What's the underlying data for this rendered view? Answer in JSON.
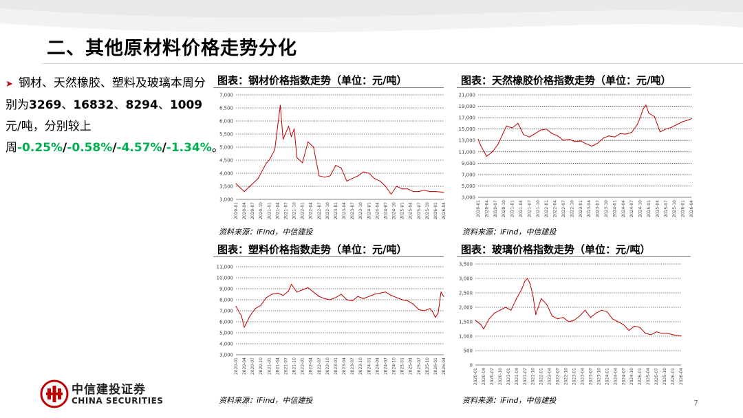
{
  "slide": {
    "title": "二、其他原材料价格走势分化",
    "page_number": "7"
  },
  "summary": {
    "t1": "钢材、天然橡胶、塑料及玻璃本周分别为",
    "n1": "3269",
    "s1": "、",
    "n2": "16832",
    "s2": "、",
    "n3": "8294",
    "s3": "、",
    "n4": "1009",
    "t2": "元/吨，分别较上周",
    "c1": "-0.25%",
    "sep1": "/",
    "c2": "-0.58%",
    "sep2": "/",
    "c3": "-4.57%",
    "sep3": "/",
    "c4": "-1.34%",
    "end": "。"
  },
  "source_text": "资料来源：iFind，中信建投",
  "logo": {
    "cn": "中信建投证券",
    "en": "CHINA SECURITIES"
  },
  "colors": {
    "series": "#c00000",
    "grid": "#000000",
    "green": "#00b050"
  },
  "chart_data": [
    {
      "type": "line",
      "title": "图表：钢材价格指数走势（单位：元/吨）",
      "ylim": [
        3000,
        7000
      ],
      "yticks": [
        "3,000",
        "3,500",
        "4,000",
        "4,500",
        "5,000",
        "5,500",
        "6,000",
        "6,500",
        "7,000"
      ],
      "xticks": [
        "2020-01",
        "2020-04",
        "2020-07",
        "2020-10",
        "2021-01",
        "2021-04",
        "2021-07",
        "2021-10",
        "2022-01",
        "2022-04",
        "2022-07",
        "2022-10",
        "2023-01",
        "2023-04",
        "2023-07",
        "2023-10",
        "2024-01",
        "2024-04",
        "2024-07",
        "2024-10",
        "2025-01",
        "2025-04",
        "2025-07",
        "2025-10",
        "2026-01",
        "2026-04"
      ],
      "grid": true,
      "series": [
        {
          "x": [
            "2020-01",
            "2020-04",
            "2020-06",
            "2020-09",
            "2020-12",
            "2021-01",
            "2021-03",
            "2021-05",
            "2021-06",
            "2021-08",
            "2021-09",
            "2021-10",
            "2021-11",
            "2022-01",
            "2022-03",
            "2022-05",
            "2022-07",
            "2022-09",
            "2022-11",
            "2023-01",
            "2023-03",
            "2023-05",
            "2023-07",
            "2023-09",
            "2023-11",
            "2024-01",
            "2024-03",
            "2024-05",
            "2024-07",
            "2024-09",
            "2024-11",
            "2025-01",
            "2025-03",
            "2025-05",
            "2025-07",
            "2025-09",
            "2025-11",
            "2026-01",
            "2026-03",
            "2026-04"
          ],
          "values": [
            3600,
            3300,
            3500,
            3800,
            4400,
            4500,
            4900,
            6600,
            5300,
            5800,
            5400,
            5700,
            4600,
            4400,
            5200,
            5000,
            3900,
            3850,
            3900,
            4300,
            4200,
            3700,
            3800,
            3900,
            4050,
            4000,
            3800,
            3700,
            3500,
            3200,
            3500,
            3400,
            3400,
            3300,
            3300,
            3350,
            3300,
            3300,
            3280,
            3269
          ]
        }
      ]
    },
    {
      "type": "line",
      "title": "图表：天然橡胶价格指数走势（单位：元/吨）",
      "ylim": [
        3000,
        21000
      ],
      "yticks": [
        "3,000",
        "5,000",
        "7,000",
        "9,000",
        "11,000",
        "13,000",
        "15,000",
        "17,000",
        "19,000",
        "21,000"
      ],
      "xticks": [
        "2020-01",
        "2020-04",
        "2020-07",
        "2020-10",
        "2021-01",
        "2021-04",
        "2021-07",
        "2021-10",
        "2022-01",
        "2022-04",
        "2022-07",
        "2022-10",
        "2023-01",
        "2023-04",
        "2023-07",
        "2023-10",
        "2024-01",
        "2024-04",
        "2024-07",
        "2024-10",
        "2025-01",
        "2025-04",
        "2025-07",
        "2025-10",
        "2026-01",
        "2026-04"
      ],
      "grid": true,
      "series": [
        {
          "x": [
            "2020-01",
            "2020-02",
            "2020-04",
            "2020-06",
            "2020-08",
            "2020-10",
            "2020-11",
            "2021-01",
            "2021-03",
            "2021-05",
            "2021-07",
            "2021-09",
            "2021-11",
            "2022-01",
            "2022-03",
            "2022-05",
            "2022-07",
            "2022-09",
            "2022-11",
            "2023-01",
            "2023-03",
            "2023-05",
            "2023-07",
            "2023-09",
            "2023-11",
            "2024-01",
            "2024-03",
            "2024-05",
            "2024-07",
            "2024-09",
            "2024-10",
            "2024-11",
            "2024-12",
            "2025-01",
            "2025-03",
            "2025-05",
            "2025-07",
            "2025-09",
            "2025-11",
            "2026-01",
            "2026-03",
            "2026-04"
          ],
          "values": [
            13200,
            12000,
            10200,
            11000,
            12300,
            14500,
            15500,
            15200,
            16000,
            14000,
            13600,
            14200,
            14800,
            15000,
            14200,
            13800,
            13000,
            13200,
            12800,
            12900,
            12400,
            12000,
            12500,
            13400,
            13800,
            13600,
            14200,
            14100,
            14400,
            15800,
            17000,
            18500,
            19200,
            17800,
            17200,
            14500,
            15000,
            15300,
            15800,
            16300,
            16600,
            16832
          ]
        }
      ]
    },
    {
      "type": "line",
      "title": "图表：塑料价格指数走势（单位：元/吨）",
      "ylim": [
        3000,
        11000
      ],
      "yticks": [
        "3,000",
        "4,000",
        "5,000",
        "6,000",
        "7,000",
        "8,000",
        "9,000",
        "10,000",
        "11,000"
      ],
      "xticks": [
        "2020-01",
        "2020-04",
        "2020-07",
        "2020-10",
        "2021-01",
        "2021-04",
        "2021-07",
        "2021-10",
        "2022-01",
        "2022-04",
        "2022-07",
        "2022-10",
        "2023-01",
        "2023-04",
        "2023-07",
        "2023-10",
        "2024-01",
        "2024-04",
        "2024-07",
        "2024-10",
        "2025-01",
        "2025-04",
        "2025-07",
        "2025-10",
        "2026-01",
        "2026-04"
      ],
      "grid": true,
      "series": [
        {
          "x": [
            "2020-01",
            "2020-03",
            "2020-04",
            "2020-06",
            "2020-08",
            "2020-10",
            "2020-12",
            "2021-02",
            "2021-04",
            "2021-06",
            "2021-08",
            "2021-09",
            "2021-11",
            "2022-01",
            "2022-03",
            "2022-05",
            "2022-07",
            "2022-09",
            "2022-11",
            "2023-01",
            "2023-03",
            "2023-05",
            "2023-07",
            "2023-09",
            "2023-11",
            "2024-01",
            "2024-03",
            "2024-05",
            "2024-07",
            "2024-09",
            "2024-11",
            "2025-01",
            "2025-03",
            "2025-05",
            "2025-07",
            "2025-09",
            "2025-11",
            "2025-12",
            "2026-01",
            "2026-02",
            "2026-03",
            "2026-04"
          ],
          "values": [
            7400,
            6500,
            5500,
            6500,
            7200,
            7500,
            8200,
            8500,
            8600,
            8400,
            8800,
            9400,
            8700,
            8900,
            9100,
            8700,
            8300,
            8100,
            8000,
            8200,
            8500,
            8000,
            7900,
            8300,
            8100,
            8300,
            8500,
            8600,
            8700,
            8400,
            8200,
            8000,
            7900,
            7600,
            7100,
            7000,
            7200,
            6900,
            6400,
            6800,
            8700,
            8294
          ]
        }
      ]
    },
    {
      "type": "line",
      "title": "图表：玻璃价格指数走势（单位：元/吨）",
      "ylim": [
        0,
        3500
      ],
      "yticks": [
        "0",
        "500",
        "1,000",
        "1,500",
        "2,000",
        "2,500",
        "3,000",
        "3,500"
      ],
      "xticks": [
        "2020-01",
        "2020-04",
        "2020-07",
        "2020-10",
        "2021-01",
        "2021-04",
        "2021-07",
        "2021-10",
        "2022-01",
        "2022-04",
        "2022-07",
        "2022-10",
        "2023-01",
        "2023-04",
        "2023-07",
        "2023-10",
        "2024-01",
        "2024-04",
        "2024-07",
        "2024-10",
        "2025-01",
        "2025-04",
        "2025-07",
        "2025-10",
        "2026-01",
        "2026-04"
      ],
      "grid": true,
      "series": [
        {
          "x": [
            "2020-01",
            "2020-03",
            "2020-04",
            "2020-06",
            "2020-08",
            "2020-10",
            "2020-12",
            "2021-02",
            "2021-04",
            "2021-06",
            "2021-07",
            "2021-08",
            "2021-09",
            "2021-10",
            "2021-11",
            "2022-01",
            "2022-03",
            "2022-05",
            "2022-07",
            "2022-09",
            "2022-11",
            "2023-01",
            "2023-03",
            "2023-05",
            "2023-07",
            "2023-09",
            "2023-11",
            "2024-01",
            "2024-03",
            "2024-05",
            "2024-07",
            "2024-09",
            "2024-11",
            "2025-01",
            "2025-03",
            "2025-05",
            "2025-07",
            "2025-09",
            "2025-11",
            "2026-01",
            "2026-03",
            "2026-04"
          ],
          "values": [
            1550,
            1400,
            1250,
            1600,
            1800,
            1900,
            2000,
            1900,
            2300,
            2650,
            2900,
            3000,
            2800,
            2400,
            1750,
            2300,
            2100,
            1700,
            1600,
            1650,
            1500,
            1550,
            1700,
            1900,
            1650,
            1800,
            1900,
            1850,
            1600,
            1500,
            1400,
            1200,
            1350,
            1300,
            1100,
            1050,
            1150,
            1100,
            1100,
            1050,
            1020,
            1009
          ]
        }
      ]
    }
  ]
}
